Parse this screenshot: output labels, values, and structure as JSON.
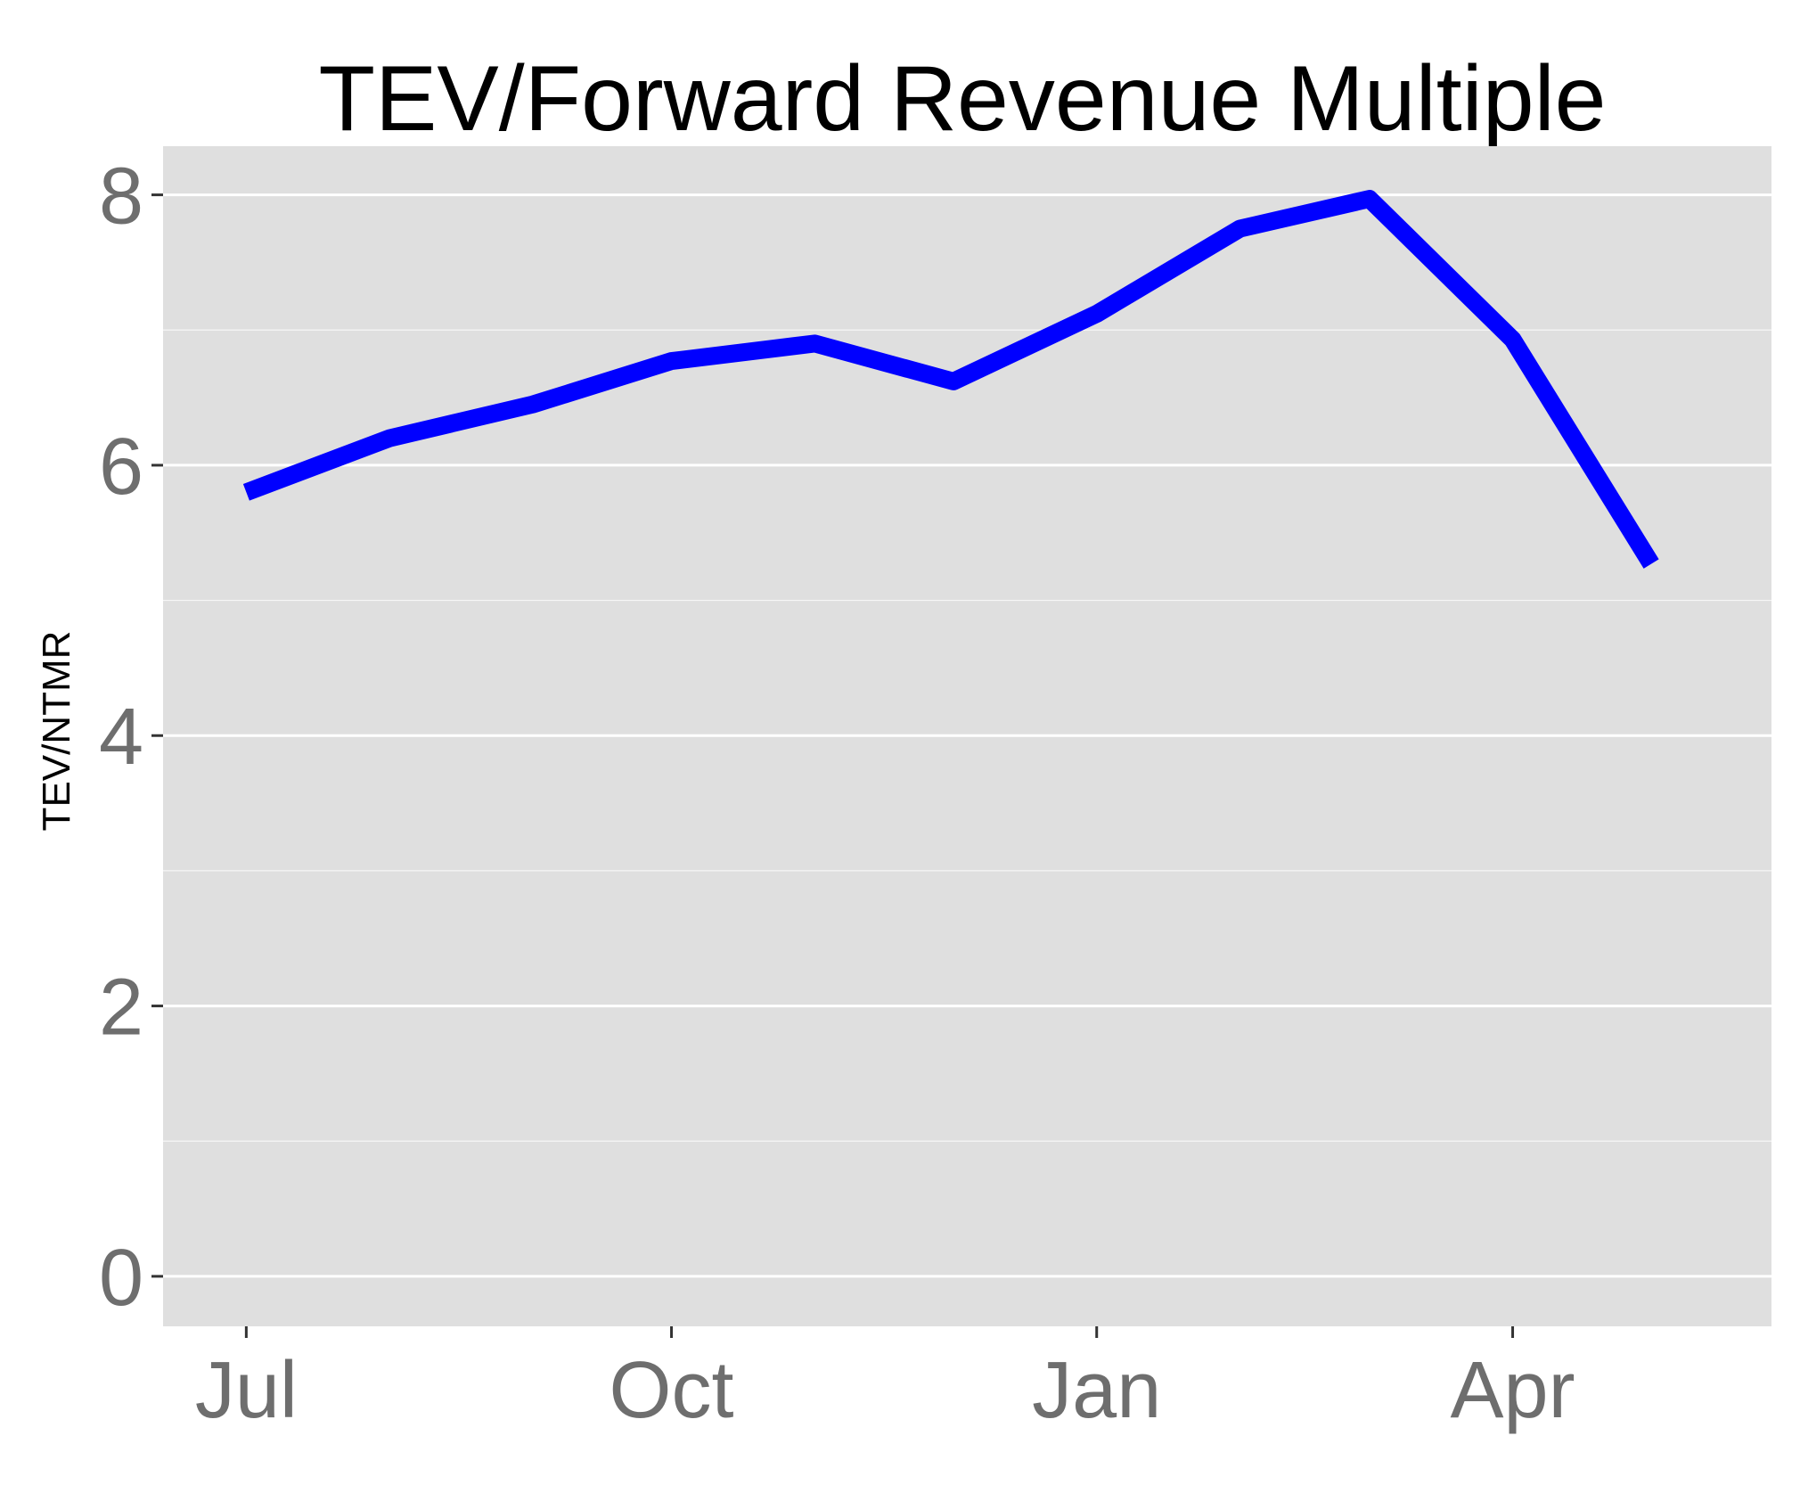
{
  "chart_data": {
    "type": "line",
    "title": "TEV/Forward Revenue Multiple",
    "xlabel": "",
    "ylabel": "TEV/NTMR",
    "x": [
      "2013-07-01",
      "2013-08-01",
      "2013-09-01",
      "2013-10-01",
      "2013-11-01",
      "2013-12-01",
      "2014-01-01",
      "2014-02-01",
      "2014-03-01",
      "2014-04-01",
      "2014-05-01"
    ],
    "series": [
      {
        "values": [
          5.8,
          6.2,
          6.45,
          6.77,
          6.9,
          6.62,
          7.12,
          7.75,
          7.97,
          6.93,
          5.27
        ]
      }
    ],
    "x_ticks": [
      {
        "label": "Jul",
        "date": "2013-07-01"
      },
      {
        "label": "Oct",
        "date": "2013-10-01"
      },
      {
        "label": "Jan",
        "date": "2014-01-01"
      },
      {
        "label": "Apr",
        "date": "2014-04-01"
      }
    ],
    "y_ticks": [
      0,
      2,
      4,
      6,
      8
    ],
    "ylim": [
      -0.37,
      8.36
    ],
    "xlim": [
      "2013-06-13",
      "2014-05-27"
    ],
    "grid": true,
    "legend": "none",
    "colors": {
      "line": "#0000ff",
      "panel": "#dfdfdf",
      "grid": "#ffffff",
      "tick_text": "#6e6e6e",
      "title_text": "#000000"
    }
  }
}
